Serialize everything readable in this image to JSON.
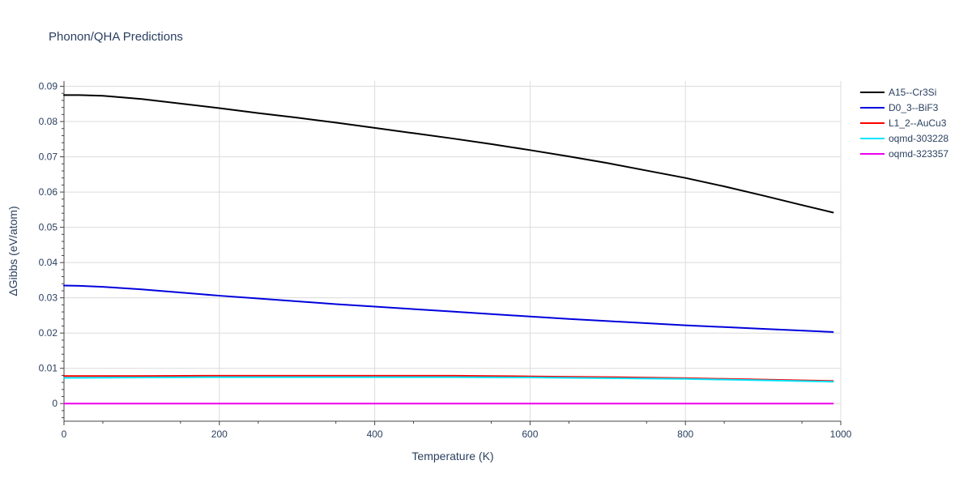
{
  "chart_data": {
    "type": "line",
    "title": "Phonon/QHA Predictions",
    "xlabel": "Temperature (K)",
    "ylabel": "ΔGibbs (eV/atom)",
    "xlim": [
      0,
      1000
    ],
    "ylim": [
      -0.005,
      0.0915
    ],
    "x_ticks": [
      0,
      200,
      400,
      600,
      800,
      1000
    ],
    "x_tick_labels": [
      "0",
      "200",
      "400",
      "600",
      "800",
      "1000"
    ],
    "y_ticks": [
      0,
      0.01,
      0.02,
      0.03,
      0.04,
      0.05,
      0.06,
      0.07,
      0.08,
      0.09
    ],
    "y_tick_labels": [
      "0",
      "0.01",
      "0.02",
      "0.03",
      "0.04",
      "0.05",
      "0.06",
      "0.07",
      "0.08",
      "0.09"
    ],
    "grid": true,
    "legend_position": "top-right",
    "series": [
      {
        "name": "A15--Cr3Si",
        "color": "#000000",
        "x": [
          0,
          20,
          50,
          100,
          150,
          200,
          250,
          300,
          350,
          400,
          450,
          500,
          550,
          600,
          650,
          700,
          750,
          800,
          850,
          900,
          950,
          990
        ],
        "y": [
          0.0875,
          0.0875,
          0.0873,
          0.0864,
          0.0851,
          0.0838,
          0.0824,
          0.0811,
          0.0797,
          0.0782,
          0.0767,
          0.0752,
          0.0736,
          0.0719,
          0.0701,
          0.0682,
          0.0661,
          0.064,
          0.0616,
          0.059,
          0.0563,
          0.0542
        ]
      },
      {
        "name": "D0_3--BiF3",
        "color": "#0000dd",
        "x": [
          0,
          20,
          50,
          100,
          150,
          200,
          250,
          300,
          350,
          400,
          450,
          500,
          550,
          600,
          650,
          700,
          750,
          800,
          850,
          900,
          950,
          990
        ],
        "y": [
          0.0335,
          0.0334,
          0.0331,
          0.0324,
          0.0315,
          0.0306,
          0.0298,
          0.029,
          0.0282,
          0.0275,
          0.0268,
          0.0261,
          0.0254,
          0.0247,
          0.024,
          0.0234,
          0.0228,
          0.0222,
          0.0217,
          0.0212,
          0.0207,
          0.0203
        ]
      },
      {
        "name": "L1_2--AuCu3",
        "color": "#ff0000",
        "x": [
          0,
          100,
          200,
          300,
          400,
          500,
          600,
          700,
          800,
          900,
          990
        ],
        "y": [
          0.0078,
          0.0078,
          0.0079,
          0.0079,
          0.0079,
          0.0079,
          0.0077,
          0.0075,
          0.0072,
          0.0068,
          0.0064
        ]
      },
      {
        "name": "oqmd-303228",
        "color": "#00e5ff",
        "x": [
          0,
          100,
          200,
          300,
          400,
          500,
          600,
          700,
          800,
          900,
          990
        ],
        "y": [
          0.0073,
          0.0074,
          0.0075,
          0.0075,
          0.0075,
          0.0075,
          0.0074,
          0.0072,
          0.007,
          0.0066,
          0.0062
        ]
      },
      {
        "name": "oqmd-323357",
        "color": "#ee00ee",
        "x": [
          0,
          990
        ],
        "y": [
          0,
          0
        ]
      }
    ]
  }
}
